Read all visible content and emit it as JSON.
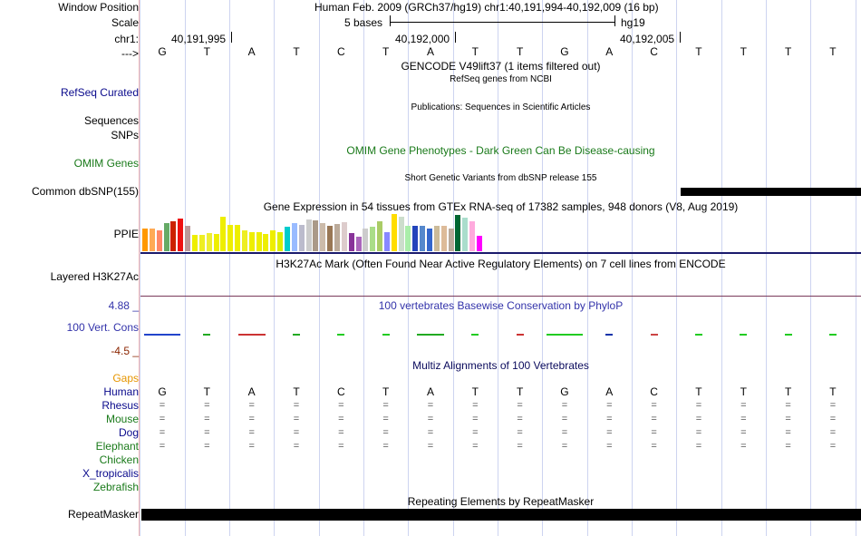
{
  "header": {
    "window_position_label": "Window Position",
    "window_position_text": "Human Feb. 2009 (GRCh37/hg19)   chr1:40,191,994-40,192,009 (16 bp)",
    "scale_label": "Scale",
    "scale_text": "5 bases",
    "scale_assembly": "hg19",
    "chrom_label": "chr1:",
    "coord_1": "40,191,995",
    "coord_2": "40,192,000",
    "coord_3": "40,192,005",
    "strand_label": "--->"
  },
  "bases": [
    "G",
    "T",
    "A",
    "T",
    "C",
    "T",
    "A",
    "T",
    "T",
    "G",
    "A",
    "C",
    "T",
    "T",
    "T",
    "T"
  ],
  "tracks": {
    "gencode_title": "GENCODE V49lift37 (1 items filtered out)",
    "refseq_subtitle": "RefSeq genes from NCBI",
    "refseq_label": "RefSeq Curated",
    "publications_subtitle": "Publications: Sequences in Scientific Articles",
    "sequences_label": "Sequences",
    "snps_label": "SNPs",
    "omim_title": "OMIM Gene Phenotypes - Dark Green Can Be Disease-causing",
    "omim_label": "OMIM Genes",
    "dbsnp_subtitle": "Short Genetic Variants from dbSNP release 155",
    "dbsnp_label": "Common dbSNP(155)",
    "gtex_title": "Gene Expression in 54 tissues from GTEx RNA-seq of 17382 samples, 948 donors (V8, Aug 2019)",
    "gtex_label": "PPIE",
    "h3k27ac_title": "H3K27Ac Mark (Often Found Near Active Regulatory Elements) on 7 cell lines from ENCODE",
    "h3k27ac_label": "Layered H3K27Ac",
    "phylop_top": "4.88 _",
    "phylop_title": "100 vertebrates Basewise Conservation by PhyloP",
    "phylop_label": "100 Vert. Cons",
    "phylop_bottom": "-4.5 _",
    "gaps_label": "Gaps",
    "multiz_title": "Multiz Alignments of 100 Vertebrates",
    "repeat_title": "Repeating Elements by RepeatMasker",
    "repeat_label": "RepeatMasker"
  },
  "species": [
    {
      "name": "Human",
      "kind": "bases"
    },
    {
      "name": "Rhesus",
      "kind": "eq"
    },
    {
      "name": "Mouse",
      "kind": "eq"
    },
    {
      "name": "Dog",
      "kind": "eq"
    },
    {
      "name": "Elephant",
      "kind": "eq"
    },
    {
      "name": "Chicken",
      "kind": "none"
    },
    {
      "name": "X_tropicalis",
      "kind": "none"
    },
    {
      "name": "Zebrafish",
      "kind": "none"
    }
  ],
  "species_colors": [
    "#0a0a8c",
    "#0a0a8c",
    "#1a7a1a",
    "#0a0a8c",
    "#1a7a1a",
    "#1a7a1a",
    "#0a0a8c",
    "#1a7a1a"
  ],
  "gtex_colors": [
    "#ff9900",
    "#ffaa55",
    "#ff8866",
    "#66aa66",
    "#cc2200",
    "#ee1111",
    "#bb9999",
    "#eeee00",
    "#eeee22",
    "#eeee33",
    "#eeee00",
    "#eeee00",
    "#eeee00",
    "#eeee00",
    "#eeee22",
    "#eeee00",
    "#eeee00",
    "#eeee00",
    "#eeee00",
    "#ddee00",
    "#00cccc",
    "#99bbff",
    "#bbbbcc",
    "#cccccc",
    "#aa9988",
    "#ccbbaa",
    "#997755",
    "#bbaa99",
    "#ddcccc",
    "#883399",
    "#aa66bb",
    "#cccccc",
    "#aadd88",
    "#aacc66",
    "#8888ff",
    "#ffdd00",
    "#ccddcc",
    "#aaeeaa",
    "#2244bb",
    "#5588cc",
    "#3366cc",
    "#ccbb99",
    "#ddbb99",
    "#bbaa99",
    "#006633",
    "#aaddcc",
    "#ffaadd",
    "#ff00ff"
  ],
  "gtex_values": [
    0.62,
    0.62,
    0.55,
    0.75,
    0.8,
    0.88,
    0.68,
    0.45,
    0.45,
    0.48,
    0.47,
    0.92,
    0.7,
    0.7,
    0.56,
    0.5,
    0.5,
    0.47,
    0.57,
    0.5,
    0.65,
    0.75,
    0.7,
    0.85,
    0.82,
    0.75,
    0.68,
    0.72,
    0.78,
    0.48,
    0.38,
    0.6,
    0.65,
    0.8,
    0.52,
    1.0,
    0.92,
    0.68,
    0.68,
    0.68,
    0.62,
    0.68,
    0.68,
    0.62,
    0.98,
    0.9,
    0.8,
    0.42
  ],
  "colors": {
    "label_blue": "#0a0a8c",
    "omim_green": "#1a7a1a",
    "gaps_orange": "#e69500",
    "phylop_blue": "#3333aa",
    "phylop_red": "#8b2500",
    "h3k27ac_line": "#7a3a5a",
    "gtex_line": "#1a1a6c"
  }
}
